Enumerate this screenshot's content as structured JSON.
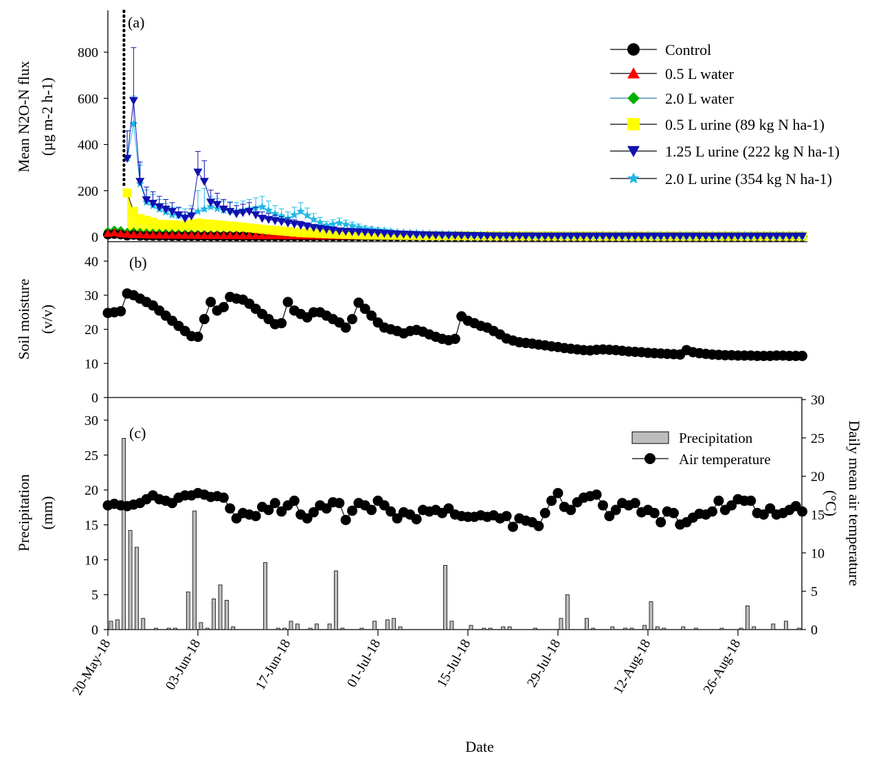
{
  "x_axis": {
    "label": "Date",
    "tick_labels": [
      "20-May-18",
      "03-Jun-18",
      "17-Jun-18",
      "01-Jul-18",
      "15-Jul-18",
      "29-Jul-18",
      "12-Aug-18",
      "26-Aug-18"
    ]
  },
  "colors": {
    "control": "#000000",
    "water05": "#ff0000",
    "water20": "#00b000",
    "water20_line": "#2a7fa8",
    "urine05": "#ffff00",
    "urine125": "#1010b0",
    "urine20": "#1fb8e6",
    "precip_bar": "#bdbdbd"
  },
  "chart_data": [
    {
      "type": "line",
      "panel_label": "(a)",
      "ylabel_line1": "Mean N2O-N flux",
      "ylabel_line2": "(µg m-2 h-1)",
      "ylim": [
        0,
        950
      ],
      "yticks": [
        0,
        200,
        400,
        600,
        800
      ],
      "treatment_day": 2.5,
      "legend_placement": "top-right",
      "series": [
        {
          "name": "Control",
          "key": "control",
          "marker": "circle",
          "points": [
            [
              0,
              10
            ],
            [
              1,
              12
            ],
            [
              2,
              10
            ],
            [
              3,
              5
            ],
            [
              4,
              8
            ],
            [
              5,
              4
            ],
            [
              10,
              3
            ],
            [
              20,
              2
            ],
            [
              40,
              2
            ],
            [
              60,
              1
            ],
            [
              80,
              1
            ],
            [
              100,
              1
            ]
          ]
        },
        {
          "name": "0.5 L water",
          "key": "water05",
          "marker": "triangle-up",
          "points": [
            [
              0,
              15
            ],
            [
              1,
              18
            ],
            [
              2,
              14
            ],
            [
              3,
              12
            ],
            [
              4,
              10
            ],
            [
              8,
              8
            ],
            [
              20,
              6
            ],
            [
              40,
              4
            ],
            [
              60,
              3
            ],
            [
              80,
              2
            ],
            [
              100,
              2
            ]
          ]
        },
        {
          "name": "2.0 L water",
          "key": "water20",
          "marker": "diamond",
          "points": [
            [
              0,
              25
            ],
            [
              1,
              30
            ],
            [
              2,
              28
            ],
            [
              3,
              20
            ],
            [
              4,
              22
            ],
            [
              6,
              18
            ],
            [
              10,
              15
            ],
            [
              16,
              10
            ],
            [
              20,
              8
            ],
            [
              30,
              5
            ],
            [
              40,
              4
            ],
            [
              60,
              5
            ],
            [
              80,
              6
            ],
            [
              100,
              6
            ]
          ]
        },
        {
          "name": "0.5 L urine (89 kg N ha-1)",
          "key": "urine05",
          "marker": "square",
          "points": [
            [
              3,
              190
            ],
            [
              4,
              110
            ],
            [
              5,
              80
            ],
            [
              8,
              55
            ],
            [
              12,
              50
            ],
            [
              14,
              60
            ],
            [
              16,
              55
            ],
            [
              20,
              45
            ],
            [
              25,
              30
            ],
            [
              30,
              18
            ],
            [
              35,
              12
            ],
            [
              40,
              8
            ],
            [
              50,
              5
            ],
            [
              60,
              4
            ],
            [
              80,
              3
            ],
            [
              100,
              3
            ]
          ]
        },
        {
          "name": "1.25 L urine (222 kg N ha-1)",
          "key": "urine125",
          "marker": "triangle-down",
          "points": [
            [
              3,
              340
            ],
            [
              4,
              590
            ],
            [
              5,
              240
            ],
            [
              6,
              160
            ],
            [
              8,
              130
            ],
            [
              10,
              110
            ],
            [
              12,
              80
            ],
            [
              13,
              90
            ],
            [
              14,
              280
            ],
            [
              15,
              240
            ],
            [
              16,
              150
            ],
            [
              17,
              140
            ],
            [
              18,
              120
            ],
            [
              20,
              100
            ],
            [
              22,
              110
            ],
            [
              24,
              80
            ],
            [
              28,
              60
            ],
            [
              32,
              40
            ],
            [
              36,
              25
            ],
            [
              40,
              20
            ],
            [
              45,
              12
            ],
            [
              50,
              8
            ],
            [
              60,
              4
            ],
            [
              70,
              3
            ],
            [
              80,
              3
            ],
            [
              100,
              3
            ]
          ]
        },
        {
          "name": "2.0 L urine (354 kg N ha-1)",
          "key": "urine20",
          "marker": "star",
          "points": [
            [
              3,
              340
            ],
            [
              4,
              490
            ],
            [
              5,
              230
            ],
            [
              6,
              150
            ],
            [
              8,
              120
            ],
            [
              10,
              95
            ],
            [
              12,
              90
            ],
            [
              14,
              110
            ],
            [
              16,
              130
            ],
            [
              18,
              115
            ],
            [
              20,
              110
            ],
            [
              22,
              120
            ],
            [
              24,
              130
            ],
            [
              26,
              100
            ],
            [
              28,
              80
            ],
            [
              30,
              110
            ],
            [
              32,
              75
            ],
            [
              34,
              50
            ],
            [
              36,
              60
            ],
            [
              40,
              35
            ],
            [
              45,
              20
            ],
            [
              50,
              14
            ],
            [
              55,
              10
            ],
            [
              60,
              8
            ],
            [
              70,
              6
            ],
            [
              80,
              5
            ],
            [
              100,
              5
            ]
          ]
        }
      ]
    },
    {
      "type": "line",
      "panel_label": "(b)",
      "ylabel_line1": "Soil moisture",
      "ylabel_line2": "(v/v)",
      "ylim": [
        0,
        45
      ],
      "yticks": [
        0,
        10,
        20,
        30,
        40
      ],
      "x": [
        0,
        1,
        2,
        3,
        4,
        5,
        6,
        7,
        8,
        9,
        10,
        11,
        12,
        13,
        14,
        15,
        16,
        17,
        18,
        19,
        20,
        21,
        22,
        23,
        24,
        25,
        26,
        27,
        28,
        29,
        30,
        31,
        32,
        33,
        34,
        35,
        36,
        37,
        38,
        39,
        40,
        41,
        42,
        43,
        44,
        45,
        46,
        47,
        48,
        49,
        50,
        51,
        52,
        53,
        54,
        55,
        56,
        57,
        58,
        59,
        60,
        61,
        62,
        63,
        64,
        65,
        66,
        67,
        68,
        69,
        70,
        71,
        72,
        73,
        74,
        75,
        76,
        77,
        78,
        79,
        80,
        81,
        82,
        83,
        84,
        85,
        86,
        87,
        88,
        89,
        90,
        91,
        92,
        93,
        94,
        95,
        96,
        97,
        98,
        99,
        100,
        101,
        102,
        103,
        104,
        105,
        106,
        107,
        108
      ],
      "values": [
        24.8,
        25.0,
        25.3,
        30.5,
        30.0,
        29.0,
        28.0,
        27.0,
        25.5,
        24.0,
        22.5,
        21.0,
        19.5,
        18.0,
        17.8,
        23.0,
        28.0,
        25.5,
        26.5,
        29.5,
        29.0,
        28.7,
        27.5,
        26.0,
        24.5,
        23.0,
        21.5,
        21.8,
        28.0,
        25.5,
        24.5,
        23.5,
        25.0,
        25.0,
        24.0,
        23.0,
        22.0,
        20.5,
        23.0,
        27.8,
        26.0,
        24.0,
        22.0,
        20.5,
        20.0,
        19.5,
        18.8,
        19.5,
        19.8,
        19.3,
        18.5,
        17.8,
        17.2,
        16.8,
        17.2,
        23.8,
        22.5,
        21.8,
        21.0,
        20.5,
        19.5,
        18.5,
        17.3,
        16.7,
        16.2,
        16.0,
        15.8,
        15.5,
        15.3,
        15.0,
        14.8,
        14.5,
        14.3,
        14.1,
        13.9,
        13.8,
        14.0,
        14.1,
        14.0,
        13.9,
        13.7,
        13.5,
        13.4,
        13.3,
        13.1,
        13.0,
        12.9,
        12.8,
        12.7,
        12.6,
        13.9,
        13.3,
        13.0,
        12.8,
        12.6,
        12.5,
        12.4,
        12.4,
        12.3,
        12.3,
        12.3,
        12.2,
        12.2,
        12.2,
        12.3,
        12.3,
        12.2,
        12.2,
        12.2
      ]
    },
    {
      "type": "bar+line",
      "panel_label": "(c)",
      "ylabel_left_line1": "Precipitation",
      "ylabel_left_line2": "(mm)",
      "ylabel_right_line1": "Daily mean air temperature",
      "ylabel_right_line2": "(°C)",
      "ylim_left": [
        0,
        32
      ],
      "yticks_left": [
        0,
        5,
        10,
        15,
        20,
        25,
        30
      ],
      "ylim_right": [
        0,
        30
      ],
      "yticks_right": [
        0,
        5,
        10,
        15,
        20,
        25,
        30
      ],
      "legend_placement": "top-right",
      "legend": [
        "Precipitation",
        "Air temperature"
      ],
      "precipitation_series": "Precipitation",
      "precipitation": [
        [
          0,
          1.2
        ],
        [
          1,
          1.4
        ],
        [
          2,
          27.4
        ],
        [
          3,
          14.2
        ],
        [
          4,
          11.8
        ],
        [
          5,
          1.6
        ],
        [
          7,
          0.2
        ],
        [
          9,
          0.2
        ],
        [
          10,
          0.2
        ],
        [
          12,
          5.4
        ],
        [
          13,
          17.0
        ],
        [
          14,
          1.0
        ],
        [
          15,
          0.2
        ],
        [
          16,
          4.4
        ],
        [
          17,
          6.4
        ],
        [
          18,
          4.2
        ],
        [
          19,
          0.4
        ],
        [
          24,
          9.6
        ],
        [
          26,
          0.2
        ],
        [
          27,
          0.2
        ],
        [
          28,
          1.2
        ],
        [
          29,
          0.8
        ],
        [
          31,
          0.2
        ],
        [
          32,
          0.8
        ],
        [
          34,
          0.8
        ],
        [
          35,
          8.4
        ],
        [
          36,
          0.2
        ],
        [
          39,
          0.2
        ],
        [
          41,
          1.2
        ],
        [
          43,
          1.4
        ],
        [
          44,
          1.6
        ],
        [
          45,
          0.4
        ],
        [
          52,
          9.2
        ],
        [
          53,
          1.2
        ],
        [
          56,
          0.6
        ],
        [
          58,
          0.2
        ],
        [
          59,
          0.2
        ],
        [
          61,
          0.4
        ],
        [
          62,
          0.4
        ],
        [
          66,
          0.2
        ],
        [
          70,
          1.6
        ],
        [
          71,
          5.0
        ],
        [
          74,
          1.6
        ],
        [
          75,
          0.2
        ],
        [
          78,
          0.4
        ],
        [
          80,
          0.2
        ],
        [
          81,
          0.2
        ],
        [
          83,
          0.6
        ],
        [
          84,
          4.0
        ],
        [
          85,
          0.4
        ],
        [
          86,
          0.2
        ],
        [
          89,
          0.4
        ],
        [
          91,
          0.2
        ],
        [
          95,
          0.2
        ],
        [
          98,
          0.2
        ],
        [
          99,
          3.4
        ],
        [
          100,
          0.4
        ],
        [
          103,
          0.8
        ],
        [
          105,
          1.2
        ],
        [
          107,
          0.2
        ]
      ],
      "temperature_series": "Air temperature",
      "temperature_x": [
        0,
        1,
        2,
        3,
        4,
        5,
        6,
        7,
        8,
        9,
        10,
        11,
        12,
        13,
        14,
        15,
        16,
        17,
        18,
        19,
        20,
        21,
        22,
        23,
        24,
        25,
        26,
        27,
        28,
        29,
        30,
        31,
        32,
        33,
        34,
        35,
        36,
        37,
        38,
        39,
        40,
        41,
        42,
        43,
        44,
        45,
        46,
        47,
        48,
        49,
        50,
        51,
        52,
        53,
        54,
        55,
        56,
        57,
        58,
        59,
        60,
        61,
        62,
        63,
        64,
        65,
        66,
        67,
        68,
        69,
        70,
        71,
        72,
        73,
        74,
        75,
        76,
        77,
        78,
        79,
        80,
        81,
        82,
        83,
        84,
        85,
        86,
        87,
        88,
        89,
        90,
        91,
        92,
        93,
        94,
        95,
        96,
        97,
        98,
        99,
        100,
        101,
        102,
        103,
        104,
        105,
        106,
        107,
        108
      ],
      "temperature": [
        16.2,
        16.4,
        16.2,
        16.1,
        16.3,
        16.5,
        17.0,
        17.5,
        17.0,
        16.8,
        16.5,
        17.2,
        17.5,
        17.5,
        17.8,
        17.6,
        17.3,
        17.4,
        17.2,
        15.8,
        14.5,
        15.2,
        15.0,
        14.8,
        16.0,
        15.6,
        16.5,
        15.4,
        16.2,
        16.8,
        15.0,
        14.5,
        15.3,
        16.2,
        15.8,
        16.6,
        16.5,
        14.3,
        15.5,
        16.5,
        16.2,
        15.6,
        16.8,
        16.2,
        15.4,
        14.5,
        15.3,
        15.0,
        14.4,
        15.6,
        15.4,
        15.6,
        15.2,
        15.8,
        15.0,
        14.8,
        14.7,
        14.7,
        14.9,
        14.7,
        14.9,
        14.5,
        14.8,
        13.4,
        14.5,
        14.2,
        14.0,
        13.5,
        15.2,
        16.8,
        17.8,
        16.0,
        15.6,
        16.6,
        17.2,
        17.4,
        17.6,
        16.2,
        14.8,
        15.6,
        16.5,
        16.2,
        16.5,
        15.3,
        15.6,
        15.2,
        14.0,
        15.4,
        15.2,
        13.7,
        14.0,
        14.6,
        15.1,
        15.0,
        15.4,
        16.8,
        15.6,
        16.2,
        17.0,
        16.8,
        16.8,
        15.2,
        15.0,
        15.8,
        15.0,
        15.2,
        15.6,
        16.1,
        15.4
      ]
    }
  ]
}
